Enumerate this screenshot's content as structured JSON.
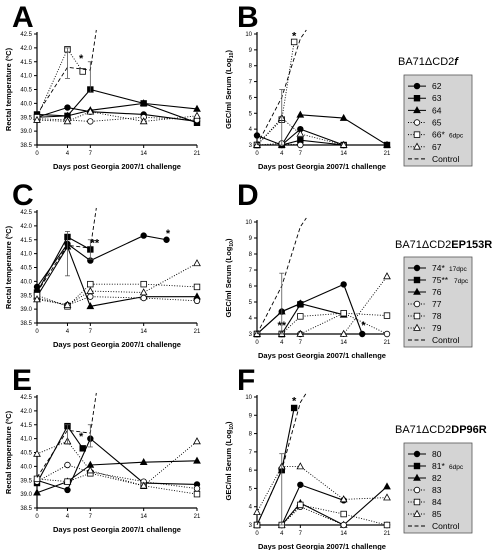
{
  "chart_data": [
    {
      "panel": "A",
      "type": "line",
      "xlabel": "Days post Georgia 2007/1 challenge",
      "ylabel": "Rectal temperature (ºC)",
      "xticks": [
        0,
        4,
        7,
        14,
        21
      ],
      "yticks": [
        "38.5",
        "39.0",
        "39.5",
        "40.0",
        "40.5",
        "41.0",
        "41.5",
        "42.0",
        "42.5"
      ],
      "ylim": [
        38.5,
        42.5
      ],
      "series": [
        {
          "name": "62",
          "marker": "circle-filled",
          "dash": "solid",
          "x": [
            0,
            4,
            7,
            14,
            21
          ],
          "y": [
            39.5,
            39.85,
            39.7,
            39.6,
            39.35
          ]
        },
        {
          "name": "63",
          "marker": "square-filled",
          "dash": "solid",
          "x": [
            0,
            4,
            7,
            14,
            21
          ],
          "y": [
            39.6,
            39.55,
            40.5,
            40.0,
            39.3
          ]
        },
        {
          "name": "64",
          "marker": "triangle-filled",
          "dash": "solid",
          "x": [
            0,
            4,
            7,
            14,
            21
          ],
          "y": [
            39.5,
            39.55,
            39.75,
            40.0,
            39.8
          ]
        },
        {
          "name": "65",
          "marker": "circle-open",
          "dash": "dotted",
          "x": [
            0,
            4,
            7,
            14,
            21
          ],
          "y": [
            39.45,
            39.4,
            39.35,
            39.5,
            39.4
          ]
        },
        {
          "name": "66",
          "marker": "square-open",
          "dash": "dotted",
          "x": [
            0,
            4,
            6
          ],
          "y": [
            39.5,
            41.95,
            41.15
          ]
        },
        {
          "name": "67",
          "marker": "triangle-open",
          "dash": "dotted",
          "x": [
            0,
            4,
            7,
            14,
            21
          ],
          "y": [
            39.4,
            39.35,
            39.7,
            39.35,
            39.55
          ]
        },
        {
          "name": "Control",
          "marker": "none",
          "dash": "dashed",
          "x": [
            0,
            4,
            7
          ],
          "y": [
            39.6,
            41.3,
            41.2
          ]
        }
      ],
      "errorbars": [
        {
          "x": 4,
          "y": 41.3,
          "low": 40.9,
          "high": 42.0
        },
        {
          "x": 7,
          "y": 41.2,
          "low": 40.4,
          "high": 41.5
        }
      ],
      "annotations": [
        {
          "text": "*",
          "x": 5.8,
          "y": 41.5
        }
      ]
    },
    {
      "panel": "B",
      "type": "line",
      "xlabel": "Days post Georgia 2007/1 challenge",
      "ylabel": "GEC/ml Serum (Log10)",
      "xticks": [
        0,
        4,
        7,
        14,
        21
      ],
      "yticks": [
        "3",
        "4",
        "5",
        "6",
        "7",
        "8",
        "9",
        "10"
      ],
      "ylim": [
        3,
        10
      ],
      "series": [
        {
          "name": "62",
          "marker": "circle-filled",
          "dash": "solid",
          "x": [
            0,
            4,
            7,
            14
          ],
          "y": [
            3.6,
            3.0,
            4.0,
            3.0
          ]
        },
        {
          "name": "63",
          "marker": "square-filled",
          "dash": "solid",
          "x": [
            0,
            4,
            7,
            14,
            21
          ],
          "y": [
            3.0,
            3.0,
            3.3,
            3.0,
            3.0
          ]
        },
        {
          "name": "64",
          "marker": "triangle-filled",
          "dash": "solid",
          "x": [
            0,
            4,
            7,
            14,
            21
          ],
          "y": [
            3.0,
            3.0,
            4.9,
            4.7,
            3.0
          ]
        },
        {
          "name": "65",
          "marker": "circle-open",
          "dash": "dotted",
          "x": [
            0,
            4,
            7,
            14
          ],
          "y": [
            3.0,
            3.1,
            3.0,
            3.0
          ]
        },
        {
          "name": "66",
          "marker": "square-open",
          "dash": "dotted",
          "x": [
            0,
            4,
            6
          ],
          "y": [
            3.0,
            4.6,
            9.5
          ]
        },
        {
          "name": "67",
          "marker": "triangle-open",
          "dash": "dotted",
          "x": [
            0,
            4,
            7,
            14
          ],
          "y": [
            3.0,
            4.7,
            3.7,
            3.0
          ]
        },
        {
          "name": "Control",
          "marker": "none",
          "dash": "dashed",
          "x": [
            0,
            4,
            7
          ],
          "y": [
            3.0,
            6.0,
            9.7
          ]
        }
      ],
      "errorbars": [
        {
          "x": 4,
          "y": 4.7,
          "low": 3.0,
          "high": 6.5
        }
      ],
      "annotations": [
        {
          "text": "*",
          "x": 6,
          "y": 9.65
        }
      ]
    },
    {
      "panel": "C",
      "type": "line",
      "xlabel": "Days post Georgia 2007/1 challenge",
      "ylabel": "Rectal temperature (ºC)",
      "xticks": [
        0,
        4,
        7,
        14,
        21
      ],
      "yticks": [
        "38.5",
        "39.0",
        "39.5",
        "40.0",
        "40.5",
        "41.0",
        "41.5",
        "42.0",
        "42.5"
      ],
      "ylim": [
        38.5,
        42.5
      ],
      "series": [
        {
          "name": "74",
          "marker": "circle-filled",
          "dash": "solid",
          "x": [
            0,
            4,
            7,
            14,
            17
          ],
          "y": [
            39.8,
            41.35,
            40.75,
            41.65,
            41.5
          ]
        },
        {
          "name": "75",
          "marker": "square-filled",
          "dash": "solid",
          "x": [
            0,
            4,
            7
          ],
          "y": [
            39.6,
            41.6,
            41.15
          ]
        },
        {
          "name": "76",
          "marker": "triangle-filled",
          "dash": "solid",
          "x": [
            0,
            4,
            7,
            14,
            21
          ],
          "y": [
            39.45,
            41.25,
            39.1,
            39.45,
            39.45
          ]
        },
        {
          "name": "77",
          "marker": "circle-open",
          "dash": "dotted",
          "x": [
            0,
            4,
            7,
            14,
            21
          ],
          "y": [
            39.4,
            39.15,
            39.45,
            39.4,
            39.3
          ]
        },
        {
          "name": "78",
          "marker": "square-open",
          "dash": "dotted",
          "x": [
            0,
            4,
            7,
            14,
            21
          ],
          "y": [
            39.5,
            39.1,
            39.9,
            39.9,
            39.8
          ]
        },
        {
          "name": "79",
          "marker": "triangle-open",
          "dash": "dotted",
          "x": [
            0,
            4,
            7,
            14,
            21
          ],
          "y": [
            39.35,
            39.15,
            39.65,
            39.6,
            40.65
          ]
        },
        {
          "name": "Control",
          "marker": "none",
          "dash": "dashed",
          "x": [
            0,
            4,
            7
          ],
          "y": [
            39.6,
            41.3,
            41.2
          ]
        }
      ],
      "errorbars": [
        {
          "x": 4,
          "y": 41.3,
          "low": 40.2,
          "high": 41.8
        },
        {
          "x": 7,
          "y": 41.2,
          "low": 40.8,
          "high": 41.5
        }
      ],
      "annotations": [
        {
          "text": "**",
          "x": 7.6,
          "y": 41.25
        },
        {
          "text": "*",
          "x": 17.2,
          "y": 41.6
        }
      ]
    },
    {
      "panel": "D",
      "type": "line",
      "xlabel": "Days post Georgia 2007/1 challenge",
      "ylabel": "GEC/ml Serum (Log10)",
      "xticks": [
        0,
        4,
        7,
        14,
        21
      ],
      "yticks": [
        "3",
        "4",
        "5",
        "6",
        "7",
        "8",
        "9",
        "10"
      ],
      "ylim": [
        3,
        10
      ],
      "series": [
        {
          "name": "74",
          "marker": "circle-filled",
          "dash": "solid",
          "x": [
            0,
            4,
            7,
            14,
            17
          ],
          "y": [
            3.0,
            4.4,
            4.9,
            6.1,
            3.0
          ]
        },
        {
          "name": "75",
          "marker": "square-filled",
          "dash": "solid",
          "x": [
            0,
            4,
            7
          ],
          "y": [
            3.0,
            3.0,
            4.85
          ]
        },
        {
          "name": "76",
          "marker": "triangle-filled",
          "dash": "solid",
          "x": [
            0,
            4,
            7,
            14
          ],
          "y": [
            3.0,
            4.4,
            4.9,
            4.2
          ]
        },
        {
          "name": "77",
          "marker": "circle-open",
          "dash": "dotted",
          "x": [
            0,
            4,
            7,
            14,
            21
          ],
          "y": [
            3.0,
            3.0,
            3.0,
            4.3,
            3.0
          ]
        },
        {
          "name": "78",
          "marker": "square-open",
          "dash": "dotted",
          "x": [
            0,
            4,
            7,
            14,
            21
          ],
          "y": [
            3.0,
            3.0,
            4.1,
            4.3,
            4.15
          ]
        },
        {
          "name": "79",
          "marker": "triangle-open",
          "dash": "dotted",
          "x": [
            0,
            4,
            7,
            14,
            21
          ],
          "y": [
            3.0,
            3.0,
            3.0,
            3.0,
            6.6
          ]
        },
        {
          "name": "Control",
          "marker": "none",
          "dash": "dashed",
          "x": [
            0,
            4,
            7
          ],
          "y": [
            3.0,
            6.0,
            9.7
          ]
        }
      ],
      "errorbars": [
        {
          "x": 4,
          "y": 4.4,
          "low": 3.0,
          "high": 6.8
        }
      ],
      "annotations": [
        {
          "text": "**",
          "x": 4,
          "y": 3.3
        },
        {
          "text": "*",
          "x": 17.2,
          "y": 3.3
        }
      ]
    },
    {
      "panel": "E",
      "type": "line",
      "xlabel": "Days post Georgia 2007/1 challenge",
      "ylabel": "Rectal temperature (ºC)",
      "xticks": [
        0,
        4,
        7,
        14,
        21
      ],
      "yticks": [
        "38.5",
        "39.0",
        "39.5",
        "40.0",
        "40.5",
        "41.0",
        "41.5",
        "42.0",
        "42.5"
      ],
      "ylim": [
        38.5,
        42.5
      ],
      "series": [
        {
          "name": "80",
          "marker": "circle-filled",
          "dash": "solid",
          "x": [
            0,
            4,
            7,
            14,
            21
          ],
          "y": [
            39.5,
            39.15,
            41.0,
            39.4,
            39.35
          ]
        },
        {
          "name": "81",
          "marker": "square-filled",
          "dash": "solid",
          "x": [
            0,
            4,
            6
          ],
          "y": [
            39.4,
            41.45,
            40.65
          ]
        },
        {
          "name": "82",
          "marker": "triangle-filled",
          "dash": "solid",
          "x": [
            0,
            4,
            7,
            14,
            21
          ],
          "y": [
            39.05,
            39.45,
            40.05,
            40.15,
            40.2
          ]
        },
        {
          "name": "83",
          "marker": "circle-open",
          "dash": "dotted",
          "x": [
            0,
            4,
            7,
            14,
            21
          ],
          "y": [
            39.45,
            40.05,
            39.8,
            39.45,
            39.2
          ]
        },
        {
          "name": "84",
          "marker": "square-open",
          "dash": "dotted",
          "x": [
            0,
            4,
            7,
            14,
            21
          ],
          "y": [
            39.55,
            39.45,
            39.75,
            39.3,
            39.0
          ]
        },
        {
          "name": "85",
          "marker": "triangle-open",
          "dash": "dotted",
          "x": [
            0,
            4,
            7,
            14,
            21
          ],
          "y": [
            40.45,
            40.9,
            39.85,
            39.3,
            40.9
          ]
        },
        {
          "name": "Control",
          "marker": "none",
          "dash": "dashed",
          "x": [
            0,
            4,
            7
          ],
          "y": [
            39.6,
            41.3,
            41.2
          ]
        }
      ],
      "errorbars": [
        {
          "x": 4,
          "y": 41.3,
          "low": 40.8,
          "high": 41.5
        },
        {
          "x": 7,
          "y": 41.2,
          "low": 40.7,
          "high": 41.5
        }
      ],
      "annotations": [
        {
          "text": "*",
          "x": 5.8,
          "y": 40.95
        }
      ]
    },
    {
      "panel": "F",
      "type": "line",
      "xlabel": "Days post Georgia 2007/1 challenge",
      "ylabel": "GEC/ml Serum (Log10)",
      "xticks": [
        0,
        4,
        7,
        14,
        21
      ],
      "yticks": [
        "3",
        "4",
        "5",
        "6",
        "7",
        "8",
        "9",
        "10"
      ],
      "ylim": [
        3,
        10
      ],
      "series": [
        {
          "name": "80",
          "marker": "circle-filled",
          "dash": "solid",
          "x": [
            0,
            4,
            7,
            14
          ],
          "y": [
            3.0,
            3.0,
            5.2,
            4.35
          ]
        },
        {
          "name": "81",
          "marker": "square-filled",
          "dash": "solid",
          "x": [
            0,
            4,
            6
          ],
          "y": [
            3.0,
            6.0,
            9.4
          ]
        },
        {
          "name": "82",
          "marker": "triangle-filled",
          "dash": "solid",
          "x": [
            0,
            4,
            7,
            14,
            21
          ],
          "y": [
            3.0,
            3.0,
            4.2,
            3.0,
            5.1
          ]
        },
        {
          "name": "83",
          "marker": "circle-open",
          "dash": "dotted",
          "x": [
            0,
            4,
            7,
            14,
            21
          ],
          "y": [
            3.0,
            3.0,
            4.0,
            3.0,
            3.0
          ]
        },
        {
          "name": "84",
          "marker": "square-open",
          "dash": "dotted",
          "x": [
            0,
            4,
            7,
            14,
            21
          ],
          "y": [
            3.0,
            3.0,
            4.1,
            3.6,
            3.0
          ]
        },
        {
          "name": "85",
          "marker": "triangle-open",
          "dash": "dotted",
          "x": [
            0,
            4,
            7,
            14,
            21
          ],
          "y": [
            3.7,
            6.2,
            6.2,
            4.4,
            4.5
          ]
        },
        {
          "name": "Control",
          "marker": "none",
          "dash": "dashed",
          "x": [
            0,
            4,
            7
          ],
          "y": [
            3.0,
            6.0,
            9.7
          ]
        }
      ],
      "errorbars": [
        {
          "x": 4,
          "y": 6.0,
          "low": 3.0,
          "high": 6.9
        }
      ],
      "annotations": [
        {
          "text": "*",
          "x": 6,
          "y": 9.6
        }
      ]
    }
  ],
  "panel_letters": [
    "A",
    "B",
    "C",
    "D",
    "E",
    "F"
  ],
  "groups": [
    {
      "title_prefix": "BA71ΔCD2",
      "title_suffix": "f",
      "suffix_style": "bold-italic",
      "legend": [
        {
          "id": "62",
          "note": ""
        },
        {
          "id": "63",
          "note": ""
        },
        {
          "id": "64",
          "note": ""
        },
        {
          "id": "65",
          "note": ""
        },
        {
          "id": "66*",
          "note": "6dpc"
        },
        {
          "id": "67",
          "note": ""
        },
        {
          "id": "Control",
          "note": ""
        }
      ]
    },
    {
      "title_prefix": "BA71ΔCD2",
      "title_suffix": "EP153R",
      "suffix_style": "bold",
      "legend": [
        {
          "id": "74*",
          "note": "17dpc"
        },
        {
          "id": "75**",
          "note": "7dpc"
        },
        {
          "id": "76",
          "note": ""
        },
        {
          "id": "77",
          "note": ""
        },
        {
          "id": "78",
          "note": ""
        },
        {
          "id": "79",
          "note": ""
        },
        {
          "id": "Control",
          "note": ""
        }
      ]
    },
    {
      "title_prefix": "BA71ΔCD2",
      "title_suffix": "DP96R",
      "suffix_style": "bold",
      "legend": [
        {
          "id": "80",
          "note": ""
        },
        {
          "id": "81*",
          "note": "6dpc"
        },
        {
          "id": "82",
          "note": ""
        },
        {
          "id": "83",
          "note": ""
        },
        {
          "id": "84",
          "note": ""
        },
        {
          "id": "85",
          "note": ""
        },
        {
          "id": "Control",
          "note": ""
        }
      ]
    }
  ]
}
